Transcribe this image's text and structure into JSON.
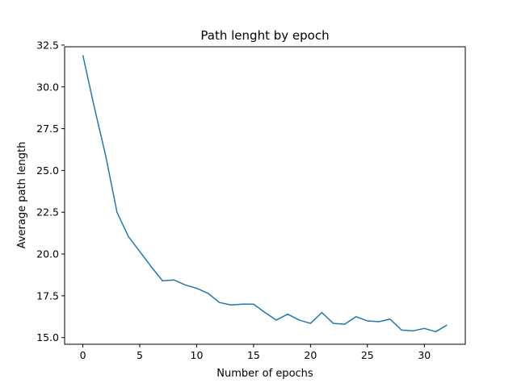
{
  "chart_data": {
    "type": "line",
    "title": "Path lenght by epoch",
    "xlabel": "Number of epochs",
    "ylabel": "Average path length",
    "xlim": [
      -1.6,
      33.6
    ],
    "ylim": [
      14.6,
      32.4
    ],
    "xticks": [
      0,
      5,
      10,
      15,
      20,
      25,
      30
    ],
    "yticks": [
      15.0,
      17.5,
      20.0,
      22.5,
      25.0,
      27.5,
      30.0,
      32.5
    ],
    "grid": false,
    "series": [
      {
        "color": "#1f77b4",
        "x": [
          0,
          1,
          2,
          3,
          4,
          5,
          6,
          7,
          8,
          9,
          10,
          11,
          12,
          13,
          14,
          15,
          16,
          17,
          18,
          19,
          20,
          21,
          22,
          23,
          24,
          25,
          26,
          27,
          28,
          29,
          30,
          31,
          32
        ],
        "y": [
          31.9,
          28.8,
          25.9,
          22.5,
          21.05,
          20.15,
          19.25,
          18.4,
          18.45,
          18.15,
          17.95,
          17.65,
          17.1,
          16.95,
          17.0,
          17.0,
          16.5,
          16.05,
          16.4,
          16.05,
          15.85,
          16.5,
          15.85,
          15.8,
          16.25,
          16.0,
          15.95,
          16.1,
          15.45,
          15.4,
          15.55,
          15.35,
          15.75
        ]
      }
    ]
  }
}
